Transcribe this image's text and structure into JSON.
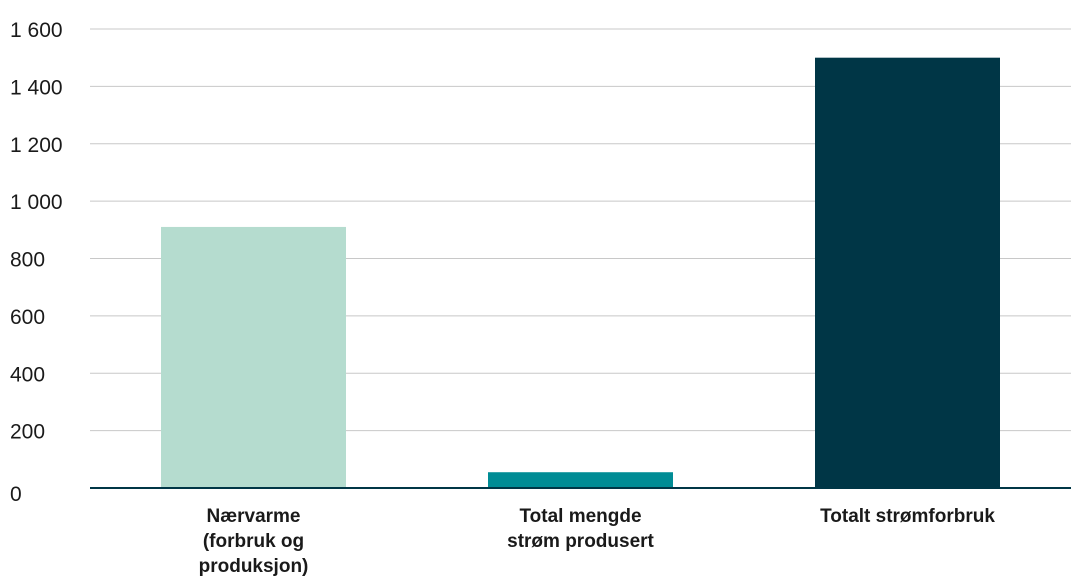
{
  "chart_data": {
    "type": "bar",
    "title": "",
    "xlabel": "",
    "ylabel": "",
    "ylim": [
      0,
      1600
    ],
    "yticks": [
      0,
      200,
      400,
      600,
      800,
      1000,
      1200,
      1400,
      1600
    ],
    "ytick_labels": [
      "0",
      "200",
      "400",
      "600",
      "800",
      "1 000",
      "1 200",
      "1 400",
      "1 600"
    ],
    "grid": true,
    "categories": [
      [
        "Nærvarme",
        "(forbruk og",
        "produksjon)"
      ],
      [
        "Total mengde",
        "strøm produsert"
      ],
      [
        "Totalt strømforbruk"
      ]
    ],
    "values": [
      910,
      55,
      1500
    ],
    "colors": [
      "#b5dccf",
      "#008c95",
      "#003646"
    ]
  }
}
